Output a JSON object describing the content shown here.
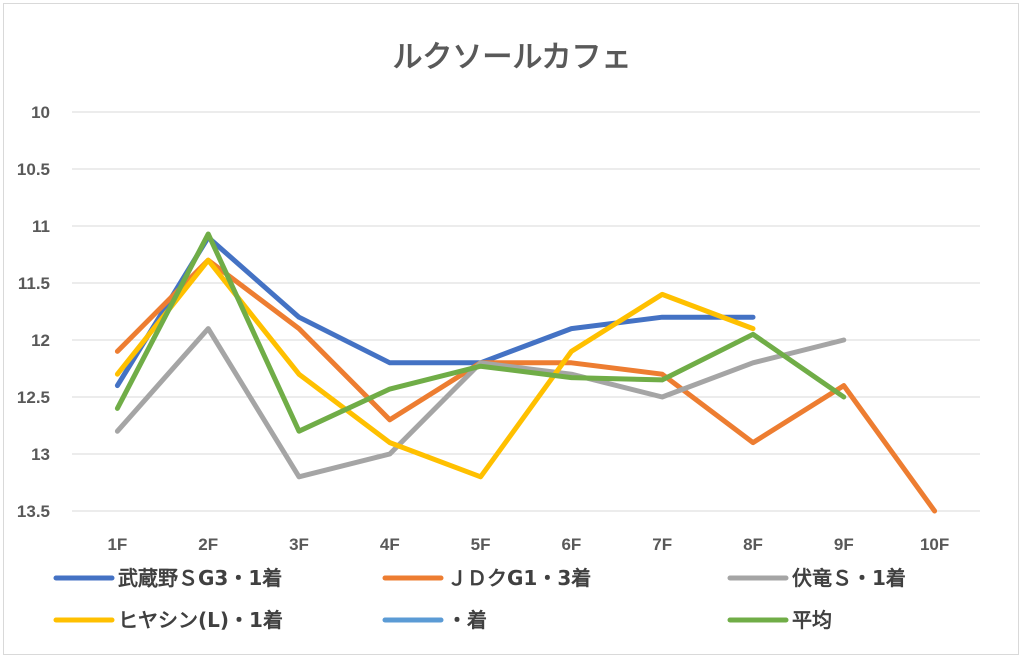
{
  "chart_data": {
    "type": "line",
    "title": "ルクソールカフェ",
    "xlabel": "",
    "ylabel": "",
    "y_reversed": true,
    "ylim": [
      10,
      13.5
    ],
    "yticks": [
      "10",
      "10.5",
      "11",
      "11.5",
      "12",
      "12.5",
      "13",
      "13.5"
    ],
    "categories": [
      "1F",
      "2F",
      "3F",
      "4F",
      "5F",
      "6F",
      "7F",
      "8F",
      "9F",
      "10F"
    ],
    "grid": true,
    "legend_position": "bottom",
    "series": [
      {
        "name": "武蔵野ＳG3・1着",
        "color": "#4472c4",
        "values": [
          12.4,
          11.1,
          11.8,
          12.2,
          12.2,
          11.9,
          11.8,
          11.8,
          null,
          null
        ]
      },
      {
        "name": "ＪＤクG1・3着",
        "color": "#ed7d31",
        "values": [
          12.1,
          11.3,
          11.9,
          12.7,
          12.2,
          12.2,
          12.3,
          12.9,
          12.4,
          13.5
        ]
      },
      {
        "name": "伏竜Ｓ・1着",
        "color": "#a5a5a5",
        "values": [
          12.8,
          11.9,
          13.2,
          13.0,
          12.2,
          12.3,
          12.5,
          12.2,
          12.0,
          null
        ]
      },
      {
        "name": "ヒヤシン(L)・1着",
        "color": "#ffc000",
        "values": [
          12.3,
          11.3,
          12.3,
          12.9,
          13.2,
          12.1,
          11.6,
          11.9,
          null,
          null
        ]
      },
      {
        "name": "・着",
        "color": "#5b9bd5",
        "values": [
          null,
          null,
          null,
          null,
          null,
          null,
          null,
          null,
          null,
          null
        ]
      },
      {
        "name": "平均",
        "color": "#70ad47",
        "values": [
          12.6,
          11.07,
          12.8,
          12.43,
          12.23,
          12.33,
          12.35,
          11.95,
          12.5,
          null
        ]
      }
    ]
  }
}
